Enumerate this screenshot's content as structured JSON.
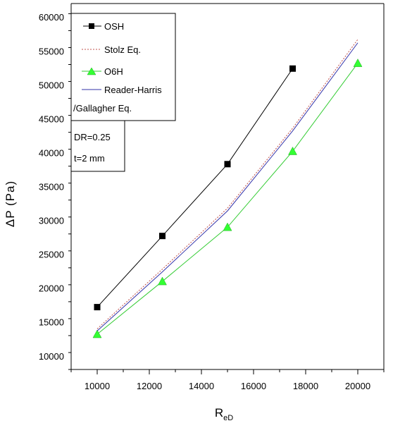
{
  "chart_data": {
    "type": "line",
    "xlabel": "R",
    "xlabel_sub": "eD",
    "ylabel": "ΔP (Pa)",
    "xlim": [
      9000,
      21000
    ],
    "ylim": [
      8000,
      62000
    ],
    "x_ticks": [
      10000,
      12000,
      14000,
      16000,
      18000,
      20000
    ],
    "x_tick_labels": [
      "10000",
      "12000",
      "14000",
      "16000",
      "18000",
      "20000"
    ],
    "y_ticks": [
      10000,
      15000,
      20000,
      25000,
      30000,
      35000,
      40000,
      45000,
      50000,
      55000,
      60000
    ],
    "y_tick_labels": [
      "10000",
      "15000",
      "20000",
      "25000",
      "30000",
      "35000",
      "40000",
      "45000",
      "50000",
      "55000",
      "60000"
    ],
    "grid": false,
    "legend_position": "top-left",
    "series": [
      {
        "name": "OSH",
        "marker": "square",
        "line": "solid",
        "color": "#000000",
        "x": [
          10000,
          12500,
          15000,
          17500
        ],
        "y": [
          17200,
          27700,
          38300,
          52400
        ]
      },
      {
        "name": "Stolz Eq.",
        "marker": "none",
        "line": "dotted",
        "color": "#c0504d",
        "x": [
          10000,
          12500,
          15000,
          17500,
          20000
        ],
        "y": [
          14000,
          22800,
          31800,
          43600,
          56700
        ]
      },
      {
        "name": "O6H",
        "marker": "triangle",
        "line": "solid",
        "color": "#33cc33",
        "x": [
          10000,
          12500,
          15000,
          17500,
          20000
        ],
        "y": [
          13200,
          21000,
          29000,
          40200,
          53200
        ]
      },
      {
        "name": "Reader-Harris /Gallagher Eq.",
        "marker": "none",
        "line": "solid",
        "color": "#3333aa",
        "x": [
          10000,
          12500,
          15000,
          17500,
          20000
        ],
        "y": [
          13700,
          22400,
          31400,
          43200,
          56200
        ]
      }
    ],
    "legend_lines": [
      "OSH",
      "Stolz Eq.",
      "O6H",
      "Reader-Harris",
      "/Gallagher Eq."
    ],
    "annotations": [
      "DR=0.25",
      "t=2 mm"
    ]
  }
}
